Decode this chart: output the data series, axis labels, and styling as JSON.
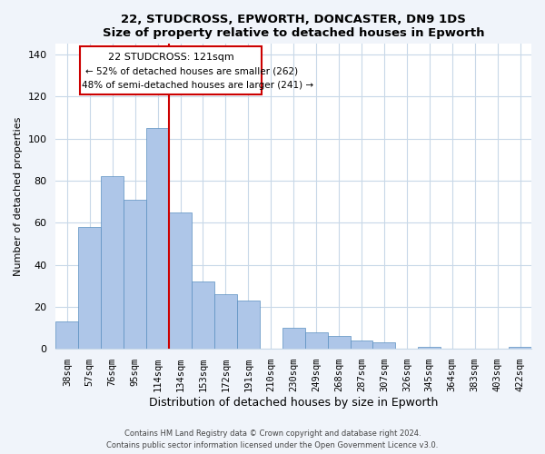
{
  "title": "22, STUDCROSS, EPWORTH, DONCASTER, DN9 1DS",
  "subtitle": "Size of property relative to detached houses in Epworth",
  "xlabel": "Distribution of detached houses by size in Epworth",
  "ylabel": "Number of detached properties",
  "categories": [
    "38sqm",
    "57sqm",
    "76sqm",
    "95sqm",
    "114sqm",
    "134sqm",
    "153sqm",
    "172sqm",
    "191sqm",
    "210sqm",
    "230sqm",
    "249sqm",
    "268sqm",
    "287sqm",
    "307sqm",
    "326sqm",
    "345sqm",
    "364sqm",
    "383sqm",
    "403sqm",
    "422sqm"
  ],
  "values": [
    13,
    58,
    82,
    71,
    105,
    65,
    32,
    26,
    23,
    0,
    10,
    8,
    6,
    4,
    3,
    0,
    1,
    0,
    0,
    0,
    1
  ],
  "bar_color": "#aec6e8",
  "bar_edge_color": "#5a8fc0",
  "vline_x": 4.5,
  "vline_color": "#cc0000",
  "annotation_title": "22 STUDCROSS: 121sqm",
  "annotation_line1": "← 52% of detached houses are smaller (262)",
  "annotation_line2": "48% of semi-detached houses are larger (241) →",
  "annotation_box_facecolor": "#ffffff",
  "annotation_box_edgecolor": "#cc0000",
  "ylim": [
    0,
    145
  ],
  "yticks": [
    0,
    20,
    40,
    60,
    80,
    100,
    120,
    140
  ],
  "footer1": "Contains HM Land Registry data © Crown copyright and database right 2024.",
  "footer2": "Contains public sector information licensed under the Open Government Licence v3.0.",
  "bg_color": "#ffffff",
  "fig_bg_color": "#f0f4fa",
  "grid_color": "#c8d8e8"
}
